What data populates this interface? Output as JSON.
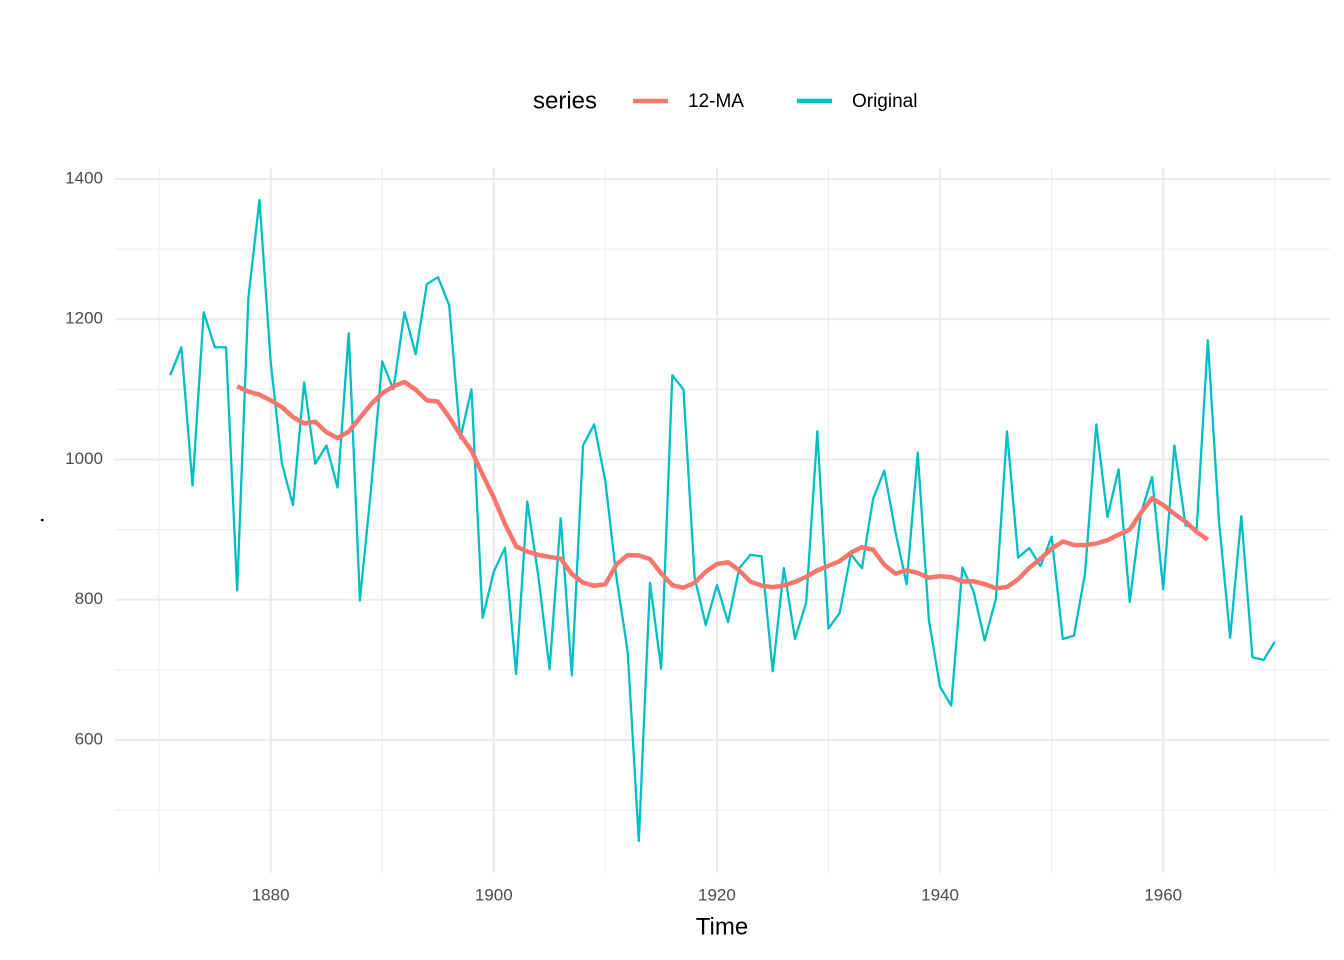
{
  "chart_data": {
    "type": "line",
    "x_label": "Time",
    "y_label": ".",
    "legend_title": "series",
    "x": [
      1871,
      1872,
      1873,
      1874,
      1875,
      1876,
      1877,
      1878,
      1879,
      1880,
      1881,
      1882,
      1883,
      1884,
      1885,
      1886,
      1887,
      1888,
      1889,
      1890,
      1891,
      1892,
      1893,
      1894,
      1895,
      1896,
      1897,
      1898,
      1899,
      1900,
      1901,
      1902,
      1903,
      1904,
      1905,
      1906,
      1907,
      1908,
      1909,
      1910,
      1911,
      1912,
      1913,
      1914,
      1915,
      1916,
      1917,
      1918,
      1919,
      1920,
      1921,
      1922,
      1923,
      1924,
      1925,
      1926,
      1927,
      1928,
      1929,
      1930,
      1931,
      1932,
      1933,
      1934,
      1935,
      1936,
      1937,
      1938,
      1939,
      1940,
      1941,
      1942,
      1943,
      1944,
      1945,
      1946,
      1947,
      1948,
      1949,
      1950,
      1951,
      1952,
      1953,
      1954,
      1955,
      1956,
      1957,
      1958,
      1959,
      1960,
      1961,
      1962,
      1963,
      1964,
      1965,
      1966,
      1967,
      1968,
      1969,
      1970
    ],
    "series": [
      {
        "name": "12-MA",
        "color": "#F8766D",
        "values": [
          null,
          null,
          null,
          null,
          null,
          null,
          1104.3,
          1096.9,
          1092.4,
          1084.3,
          1074.8,
          1060.5,
          1051.5,
          1053.8,
          1038.8,
          1030.5,
          1039.9,
          1059.5,
          1078.8,
          1094.5,
          1104.3,
          1110.6,
          1099.5,
          1084.3,
          1082.5,
          1060.4,
          1035.2,
          1012.8,
          978.4,
          945.8,
          908.2,
          876.2,
          868.7,
          864.0,
          861.0,
          858.6,
          836.4,
          824.4,
          819.9,
          822.0,
          850.5,
          863.7,
          863.2,
          857.9,
          837.8,
          820.9,
          817.1,
          824.2,
          839.9,
          850.9,
          853.5,
          841.8,
          825.8,
          820.2,
          817.9,
          820.4,
          825.5,
          832.8,
          841.9,
          848.4,
          855.0,
          867.0,
          875.0,
          871.2,
          849.9,
          837.2,
          842.1,
          838.3,
          831.3,
          833.5,
          832.3,
          826.2,
          826.3,
          822.4,
          816.3,
          818.2,
          829.1,
          845.5,
          858.4,
          873.0,
          883.0,
          878.0,
          877.9,
          880.2,
          884.9,
          892.8,
          900.0,
          924.0,
          944.7,
          935.1,
          922.5,
          911.3,
          896.7,
          885.6,
          null,
          null,
          null,
          null,
          null,
          null
        ]
      },
      {
        "name": "Original",
        "color": "#00BFC4",
        "values": [
          1120,
          1160,
          963,
          1210,
          1160,
          1160,
          813,
          1230,
          1370,
          1140,
          995,
          935,
          1110,
          994,
          1020,
          960,
          1180,
          799,
          958,
          1140,
          1100,
          1210,
          1150,
          1250,
          1260,
          1220,
          1030,
          1100,
          774,
          840,
          874,
          694,
          940,
          833,
          701,
          916,
          692,
          1020,
          1050,
          969,
          831,
          726,
          456,
          824,
          702,
          1120,
          1100,
          832,
          764,
          821,
          768,
          845,
          864,
          862,
          698,
          845,
          744,
          796,
          1040,
          759,
          781,
          865,
          845,
          944,
          984,
          897,
          822,
          1010,
          771,
          676,
          649,
          846,
          812,
          742,
          801,
          1040,
          860,
          874,
          848,
          890,
          744,
          749,
          838,
          1050,
          918,
          986,
          797,
          923,
          975,
          815,
          1020,
          906,
          901,
          1170,
          912,
          746,
          919,
          718,
          714,
          740
        ]
      }
    ],
    "xlim": [
      1866.05,
      1974.95
    ],
    "xticks": [
      1880,
      1900,
      1920,
      1940,
      1960
    ],
    "minor_xticks": [
      1870,
      1890,
      1910,
      1930,
      1950,
      1970
    ],
    "ylim": [
      410.3,
      1415.7
    ],
    "yticks": [
      600,
      800,
      1000,
      1200,
      1400
    ],
    "minor_yticks": [
      500,
      700,
      900,
      1100,
      1300
    ],
    "grid": true,
    "legend_position": "top"
  }
}
